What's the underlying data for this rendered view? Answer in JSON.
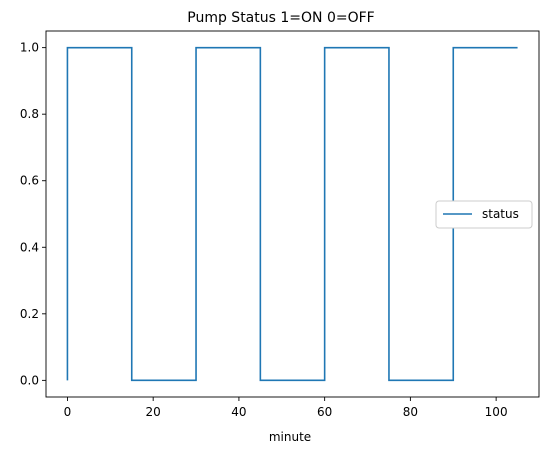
{
  "chart_data": {
    "type": "line",
    "title": "Pump Status 1=ON 0=OFF",
    "xlabel": "minute",
    "ylabel": "",
    "xlim": [
      -5,
      110
    ],
    "ylim": [
      -0.05,
      1.05
    ],
    "xticks": [
      0,
      20,
      40,
      60,
      80,
      100
    ],
    "xtick_labels": [
      "0",
      "20",
      "40",
      "60",
      "80",
      "100"
    ],
    "yticks": [
      0.0,
      0.2,
      0.4,
      0.6,
      0.8,
      1.0
    ],
    "ytick_labels": [
      "0.0",
      "0.2",
      "0.4",
      "0.6",
      "0.8",
      "1.0"
    ],
    "grid": false,
    "legend_position": "center-right",
    "series": [
      {
        "name": "status",
        "color": "#1f77b4",
        "step": "post",
        "x": [
          0,
          0,
          15,
          15,
          30,
          30,
          45,
          45,
          60,
          60,
          75,
          75,
          90,
          90,
          105
        ],
        "y": [
          0,
          1,
          1,
          0,
          0,
          1,
          1,
          0,
          0,
          1,
          1,
          0,
          0,
          1,
          1
        ]
      }
    ]
  }
}
